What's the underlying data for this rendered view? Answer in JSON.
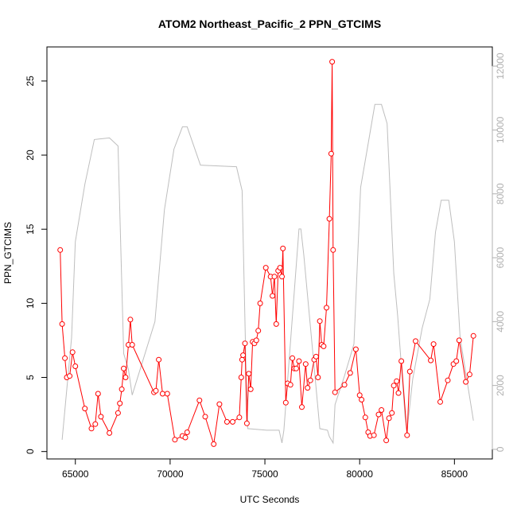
{
  "chart_data": {
    "type": "line",
    "title": "ATOM2 Northeast_Pacific_2 PPN_GTCIMS",
    "xlabel": "UTC Seconds",
    "ylabel": "PPN_GTCIMS",
    "xlim": [
      63500,
      87000
    ],
    "ylim": [
      -0.5,
      27.3
    ],
    "y2lim": [
      -300,
      12600
    ],
    "x_ticks": [
      65000,
      70000,
      75000,
      80000,
      85000
    ],
    "y_ticks": [
      0,
      5,
      10,
      15,
      20,
      25
    ],
    "y2_ticks": [
      0,
      2000,
      4000,
      6000,
      8000,
      10000,
      12000
    ],
    "grid": false,
    "colors": {
      "primary": "#ff0000",
      "secondary": "#bebebe"
    },
    "series": [
      {
        "axis": "left",
        "style": "line-with-open-circles",
        "points": [
          [
            64200,
            13.6
          ],
          [
            64300,
            8.6
          ],
          [
            64450,
            6.3
          ],
          [
            64550,
            5.0
          ],
          [
            64700,
            5.1
          ],
          [
            64850,
            6.7
          ],
          [
            65000,
            5.75
          ],
          [
            65500,
            2.9
          ],
          [
            65850,
            1.55
          ],
          [
            66050,
            1.85
          ],
          [
            66200,
            3.9
          ],
          [
            66350,
            2.35
          ],
          [
            66800,
            1.25
          ],
          [
            67250,
            2.6
          ],
          [
            67350,
            3.25
          ],
          [
            67450,
            4.2
          ],
          [
            67550,
            5.6
          ],
          [
            67650,
            5.0
          ],
          [
            67800,
            7.2
          ],
          [
            67900,
            8.9
          ],
          [
            68000,
            7.2
          ],
          [
            69150,
            4.0
          ],
          [
            69250,
            4.1
          ],
          [
            69400,
            6.2
          ],
          [
            69600,
            3.9
          ],
          [
            69850,
            3.9
          ],
          [
            70250,
            0.8
          ],
          [
            70650,
            1.05
          ],
          [
            70800,
            0.95
          ],
          [
            70900,
            1.3
          ],
          [
            71550,
            3.45
          ],
          [
            71850,
            2.35
          ],
          [
            72300,
            0.5
          ],
          [
            72600,
            3.2
          ],
          [
            73000,
            2.0
          ],
          [
            73300,
            2.0
          ],
          [
            73650,
            2.3
          ],
          [
            73750,
            5.0
          ],
          [
            73800,
            6.2
          ],
          [
            73850,
            6.5
          ],
          [
            73950,
            7.3
          ],
          [
            74050,
            1.9
          ],
          [
            74150,
            5.25
          ],
          [
            74250,
            4.2
          ],
          [
            74350,
            7.4
          ],
          [
            74450,
            7.3
          ],
          [
            74550,
            7.5
          ],
          [
            74650,
            8.15
          ],
          [
            74750,
            10.0
          ],
          [
            75050,
            12.4
          ],
          [
            75300,
            11.8
          ],
          [
            75400,
            10.5
          ],
          [
            75500,
            11.8
          ],
          [
            75600,
            8.6
          ],
          [
            75700,
            12.2
          ],
          [
            75800,
            12.4
          ],
          [
            75900,
            11.8
          ],
          [
            75950,
            13.7
          ],
          [
            76100,
            3.3
          ],
          [
            76200,
            4.6
          ],
          [
            76350,
            4.5
          ],
          [
            76450,
            6.3
          ],
          [
            76550,
            5.6
          ],
          [
            76650,
            5.6
          ],
          [
            76800,
            6.1
          ],
          [
            76950,
            3.0
          ],
          [
            77150,
            5.9
          ],
          [
            77250,
            4.3
          ],
          [
            77400,
            4.8
          ],
          [
            77600,
            6.2
          ],
          [
            77700,
            6.4
          ],
          [
            77800,
            5.0
          ],
          [
            77900,
            8.8
          ],
          [
            78000,
            7.2
          ],
          [
            78100,
            7.1
          ],
          [
            78250,
            9.7
          ],
          [
            78400,
            15.7
          ],
          [
            78500,
            20.1
          ],
          [
            78550,
            26.3
          ],
          [
            78600,
            13.6
          ],
          [
            78700,
            4.0
          ],
          [
            79200,
            4.5
          ],
          [
            79500,
            5.3
          ],
          [
            79800,
            6.9
          ],
          [
            80000,
            3.8
          ],
          [
            80100,
            3.5
          ],
          [
            80300,
            2.3
          ],
          [
            80450,
            1.3
          ],
          [
            80550,
            1.05
          ],
          [
            80750,
            1.1
          ],
          [
            81000,
            2.5
          ],
          [
            81150,
            2.8
          ],
          [
            81400,
            0.75
          ],
          [
            81550,
            2.25
          ],
          [
            81700,
            2.6
          ],
          [
            81800,
            4.45
          ],
          [
            81950,
            4.75
          ],
          [
            82050,
            3.95
          ],
          [
            82200,
            6.1
          ],
          [
            82500,
            1.1
          ],
          [
            82650,
            5.4
          ],
          [
            82950,
            7.45
          ],
          [
            83750,
            6.15
          ],
          [
            83900,
            7.25
          ],
          [
            84250,
            3.35
          ],
          [
            84650,
            4.8
          ],
          [
            84950,
            5.9
          ],
          [
            85100,
            6.1
          ],
          [
            85250,
            7.5
          ],
          [
            85600,
            4.7
          ],
          [
            85800,
            5.2
          ],
          [
            86000,
            7.8
          ]
        ]
      },
      {
        "axis": "right",
        "style": "line",
        "points": [
          [
            64300,
            300
          ],
          [
            64800,
            3500
          ],
          [
            65000,
            6500
          ],
          [
            65500,
            8300
          ],
          [
            66000,
            9700
          ],
          [
            66800,
            9750
          ],
          [
            67250,
            9500
          ],
          [
            67550,
            3000
          ],
          [
            67800,
            2500
          ],
          [
            68000,
            1700
          ],
          [
            69200,
            4000
          ],
          [
            69700,
            7500
          ],
          [
            70200,
            9400
          ],
          [
            70650,
            10100
          ],
          [
            70900,
            10100
          ],
          [
            71600,
            8900
          ],
          [
            73500,
            8850
          ],
          [
            73800,
            8100
          ],
          [
            74000,
            2600
          ],
          [
            74100,
            650
          ],
          [
            75100,
            600
          ],
          [
            75750,
            600
          ],
          [
            75900,
            200
          ],
          [
            76000,
            600
          ],
          [
            76800,
            6900
          ],
          [
            76900,
            6900
          ],
          [
            77050,
            6100
          ],
          [
            77900,
            650
          ],
          [
            78300,
            600
          ],
          [
            78400,
            400
          ],
          [
            78600,
            200
          ],
          [
            78700,
            1400
          ],
          [
            79200,
            2300
          ],
          [
            79700,
            3300
          ],
          [
            80050,
            8200
          ],
          [
            80400,
            9400
          ],
          [
            80800,
            10800
          ],
          [
            81150,
            10800
          ],
          [
            81450,
            10200
          ],
          [
            81800,
            5500
          ],
          [
            82000,
            4200
          ],
          [
            82400,
            1000
          ],
          [
            82500,
            600
          ],
          [
            82800,
            2200
          ],
          [
            83300,
            3800
          ],
          [
            83700,
            4700
          ],
          [
            84000,
            6800
          ],
          [
            84300,
            7800
          ],
          [
            84700,
            7800
          ],
          [
            85000,
            6500
          ],
          [
            85300,
            3500
          ],
          [
            86000,
            900
          ]
        ]
      }
    ]
  }
}
